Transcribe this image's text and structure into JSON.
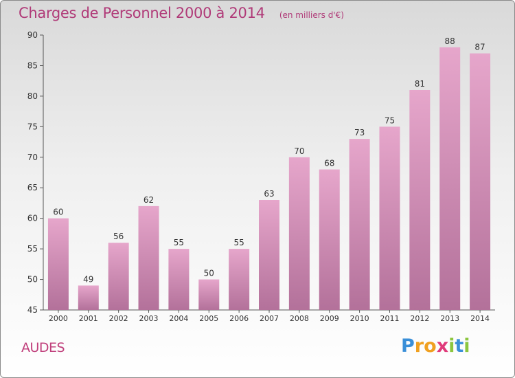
{
  "chart_data": {
    "type": "bar",
    "title": "Charges de Personnel 2000 à 2014",
    "subtitle": "(en milliers d'€)",
    "categories": [
      "2000",
      "2001",
      "2002",
      "2003",
      "2004",
      "2005",
      "2006",
      "2007",
      "2008",
      "2009",
      "2010",
      "2011",
      "2012",
      "2013",
      "2014"
    ],
    "values": [
      60,
      49,
      56,
      62,
      55,
      50,
      55,
      63,
      70,
      68,
      73,
      75,
      81,
      88,
      87
    ],
    "ylim": [
      45,
      90
    ],
    "yticks": [
      45,
      50,
      55,
      60,
      65,
      70,
      75,
      80,
      85,
      90
    ],
    "grid": false,
    "bar_color_top": "#e6a6cb",
    "bar_color_bottom": "#b3719a"
  },
  "location": "AUDES",
  "logo": {
    "letters": [
      "P",
      "r",
      "o",
      "x",
      "i",
      "t",
      "i"
    ],
    "colors": [
      "#3a8fd8",
      "#f0a020",
      "#f0a020",
      "#e03a7a",
      "#8cc63f",
      "#3a8fd8",
      "#8cc63f"
    ]
  }
}
